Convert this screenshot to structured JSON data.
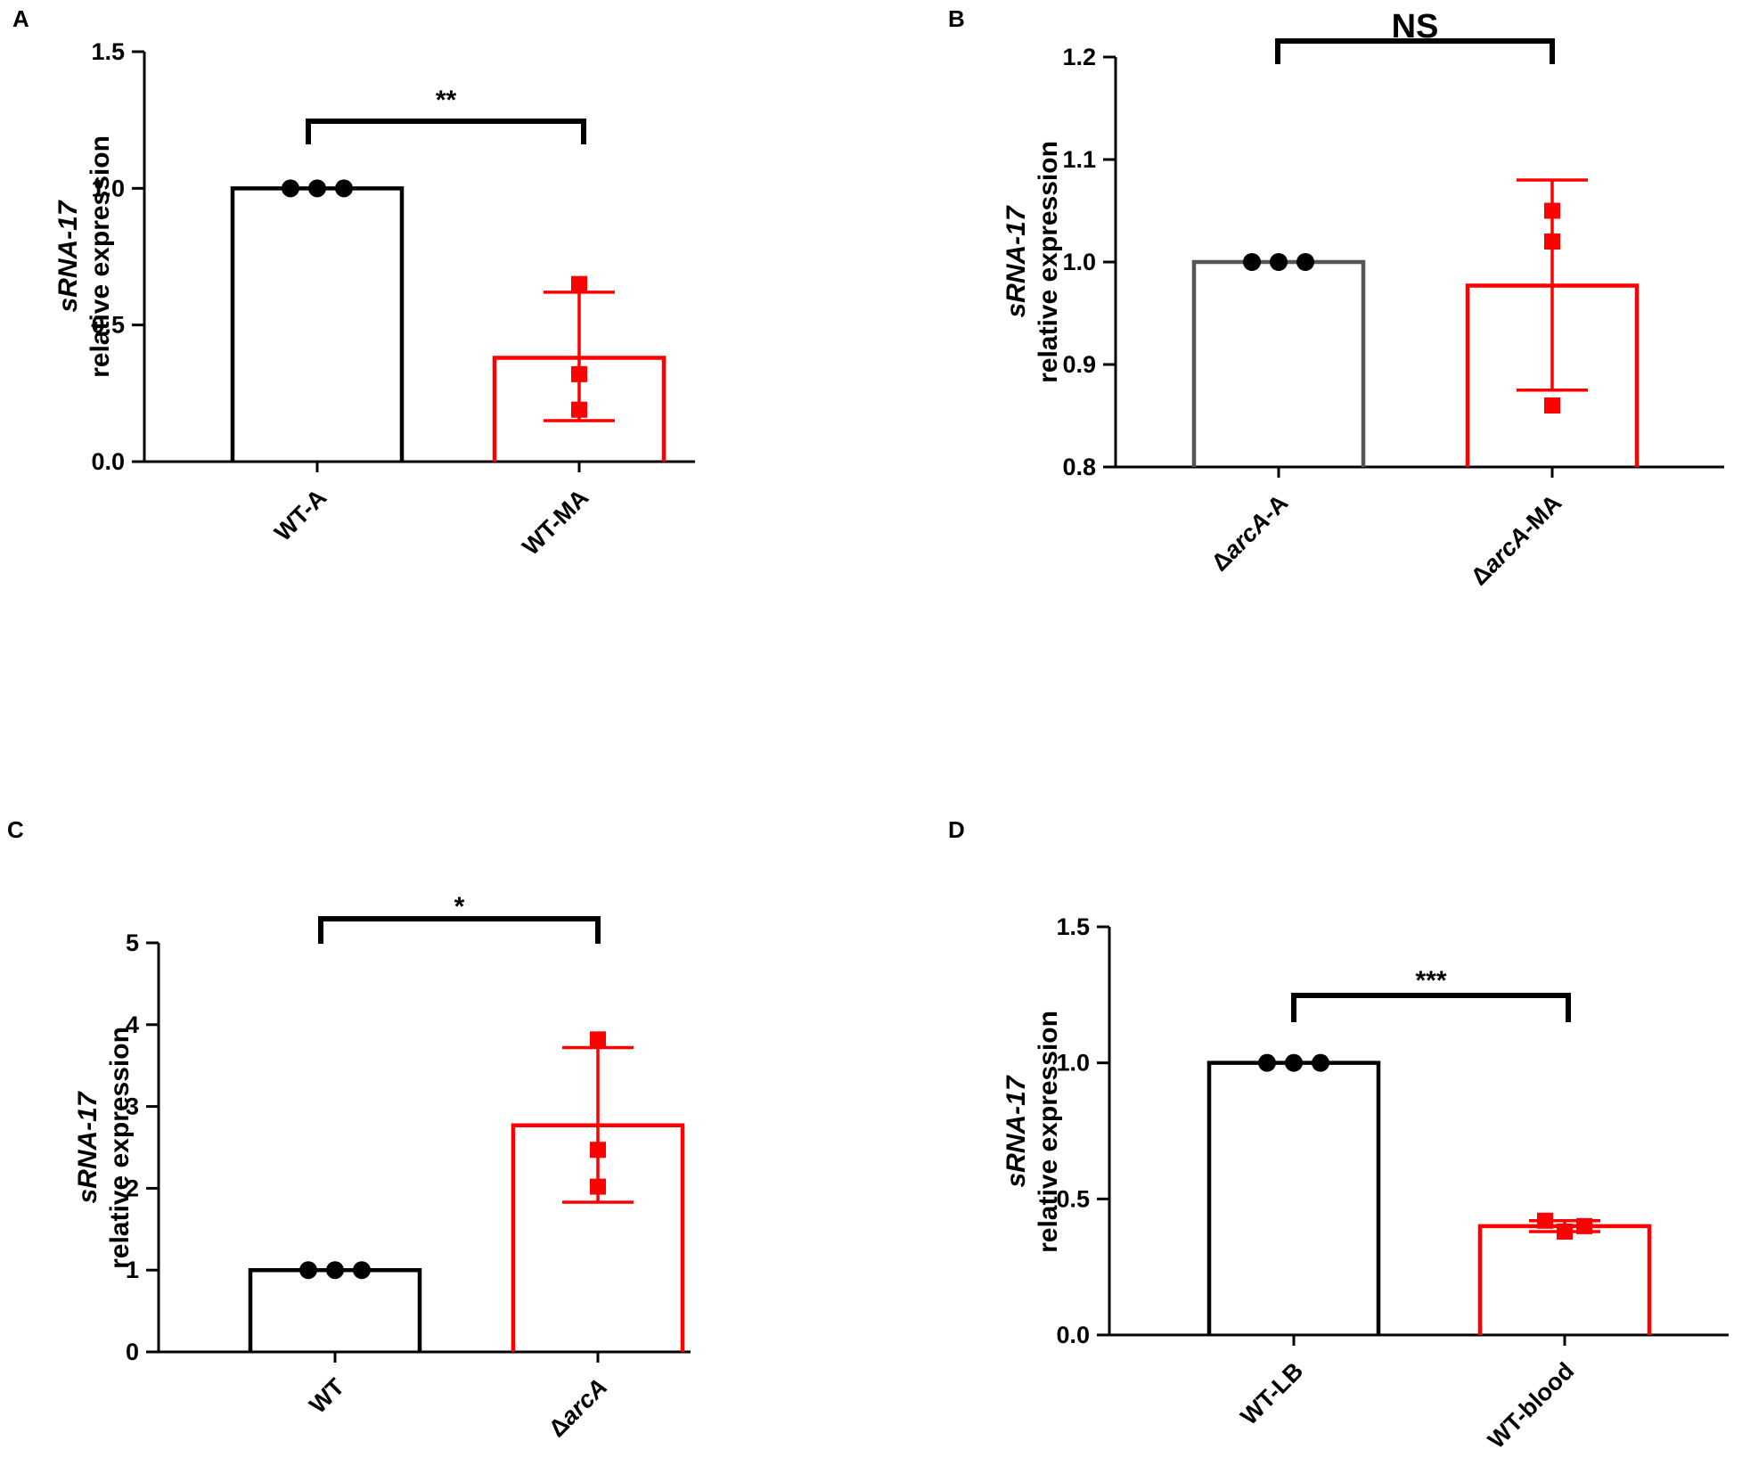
{
  "chart_data": [
    {
      "type": "bar",
      "panel": "A",
      "categories": [
        "WT-A",
        "WT-MA"
      ],
      "category_italic_prefix": [
        "",
        ""
      ],
      "values": [
        1.0,
        0.38
      ],
      "error_upper": [
        1.0,
        0.62
      ],
      "error_lower": [
        1.0,
        0.15
      ],
      "points": [
        [
          1.0,
          1.0,
          1.0
        ],
        [
          0.65,
          0.32,
          0.19
        ]
      ],
      "marker_shapes": [
        "circle",
        "square"
      ],
      "bar_colors": [
        "#000000",
        "#ff0000"
      ],
      "ylabel_italic": "sRNA-17",
      "ylabel": "relative expression",
      "ylim": [
        0,
        1.5
      ],
      "yticks": [
        "0.0",
        "0.5",
        "1.0",
        "1.5"
      ],
      "significance": "**"
    },
    {
      "type": "bar",
      "panel": "B",
      "categories": [
        "-A",
        "-MA"
      ],
      "category_italic_prefix": [
        "Δ",
        "Δ"
      ],
      "category_italic_part": [
        "arcA",
        "arcA"
      ],
      "values": [
        1.0,
        0.977
      ],
      "error_upper": [
        1.0,
        1.08
      ],
      "error_lower": [
        1.0,
        0.875
      ],
      "points": [
        [
          1.0,
          1.0,
          1.0
        ],
        [
          1.05,
          1.02,
          0.86
        ]
      ],
      "marker_shapes": [
        "circle",
        "square"
      ],
      "bar_colors": [
        "#555555",
        "#ff0000"
      ],
      "ylabel_italic": "sRNA-17",
      "ylabel": "relative expression",
      "ylim": [
        0.8,
        1.2
      ],
      "yticks": [
        "0.8",
        "0.9",
        "1.0",
        "1.1",
        "1.2"
      ],
      "significance": "NS"
    },
    {
      "type": "bar",
      "panel": "C",
      "categories": [
        "WT",
        ""
      ],
      "category_italic_prefix": [
        "",
        "Δ"
      ],
      "category_italic_part": [
        "",
        "arcA"
      ],
      "values": [
        1.0,
        2.77
      ],
      "error_upper": [
        1.0,
        3.72
      ],
      "error_lower": [
        1.0,
        1.83
      ],
      "points": [
        [
          1.0,
          1.0,
          1.0
        ],
        [
          3.82,
          2.47,
          2.02
        ]
      ],
      "marker_shapes": [
        "circle",
        "square"
      ],
      "bar_colors": [
        "#000000",
        "#ff0000"
      ],
      "ylabel_italic": "sRNA-17",
      "ylabel": "relative expression",
      "ylim": [
        0,
        5
      ],
      "yticks": [
        "0",
        "1",
        "2",
        "3",
        "4",
        "5"
      ],
      "significance": "*"
    },
    {
      "type": "bar",
      "panel": "D",
      "categories": [
        "WT-LB",
        "WT-blood"
      ],
      "category_italic_prefix": [
        "",
        ""
      ],
      "values": [
        1.0,
        0.4
      ],
      "error_upper": [
        1.0,
        0.42
      ],
      "error_lower": [
        1.0,
        0.38
      ],
      "points": [
        [
          1.0,
          1.0,
          1.0
        ],
        [
          0.42,
          0.38,
          0.4
        ]
      ],
      "marker_shapes": [
        "circle",
        "square"
      ],
      "bar_colors": [
        "#000000",
        "#ff0000"
      ],
      "ylabel_italic": "sRNA-17",
      "ylabel": "relative expression",
      "ylim": [
        0,
        1.5
      ],
      "yticks": [
        "0.0",
        "0.5",
        "1.0",
        "1.5"
      ],
      "significance": "***"
    }
  ]
}
